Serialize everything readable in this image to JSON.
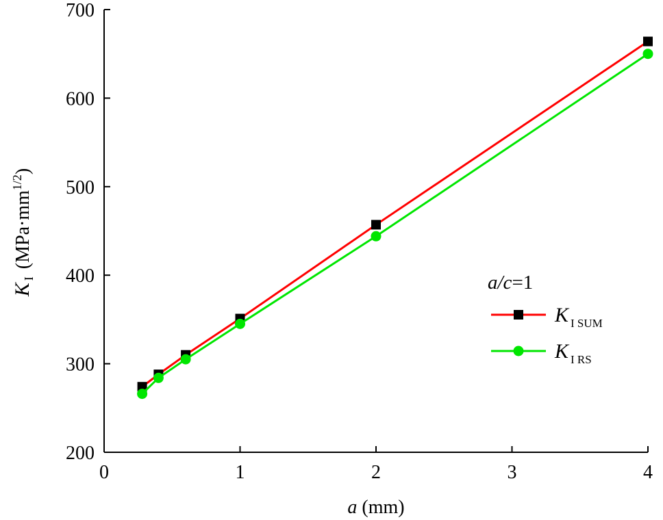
{
  "chart_data": {
    "type": "line",
    "xlabel": {
      "var": "a",
      "unit": "(mm)"
    },
    "ylabel": {
      "var": "K",
      "sub": "I",
      "unit": "(MPa·mm",
      "sup": "1/2",
      "close": ")"
    },
    "xlim": [
      0,
      4
    ],
    "ylim": [
      200,
      700
    ],
    "xticks": [
      "0",
      "1",
      "2",
      "3",
      "4"
    ],
    "yticks": [
      "200",
      "300",
      "400",
      "500",
      "600",
      "700"
    ],
    "grid": false,
    "legend": {
      "title_var": "a/c",
      "title_rest": "=1",
      "placement": "center-right"
    },
    "series": [
      {
        "name": "K",
        "subscript": "I SUM",
        "color": "#ff0000",
        "marker": "square",
        "x": [
          0.28,
          0.4,
          0.6,
          1.0,
          2.0,
          4.0
        ],
        "y": [
          274,
          288,
          310,
          351,
          457,
          664
        ]
      },
      {
        "name": "K",
        "subscript": "I RS",
        "color": "#00e600",
        "marker": "circle",
        "x": [
          0.28,
          0.4,
          0.6,
          1.0,
          2.0,
          4.0
        ],
        "y": [
          266,
          284,
          305,
          345,
          444,
          650
        ]
      }
    ]
  }
}
